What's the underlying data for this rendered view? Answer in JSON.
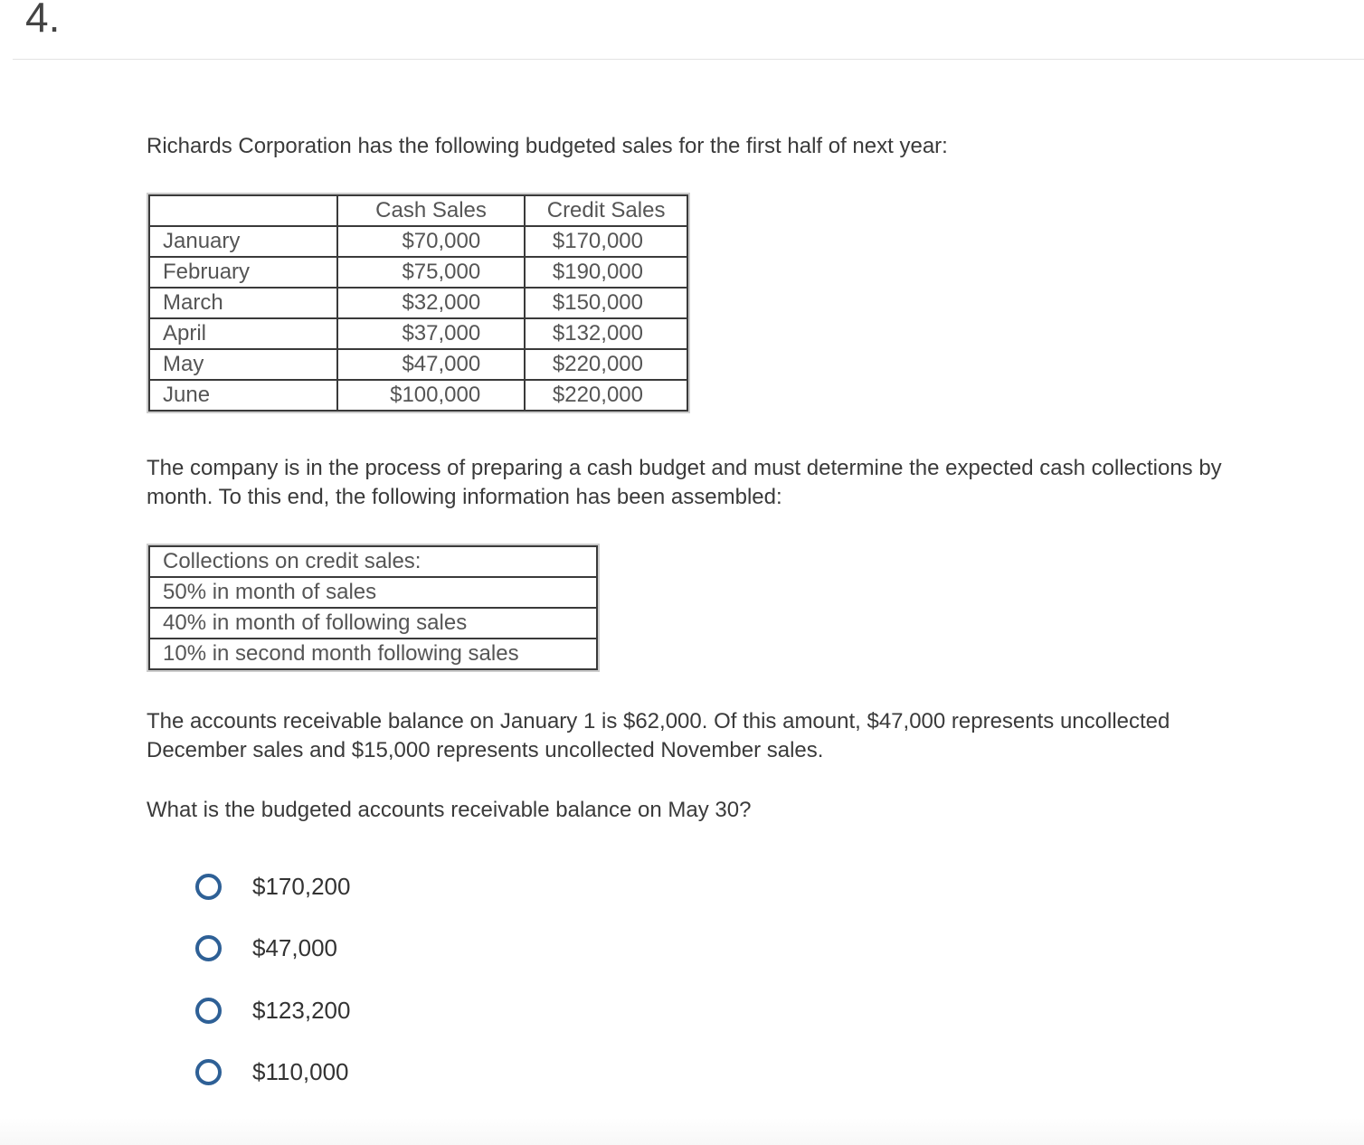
{
  "question_number": "4.",
  "intro": "Richards Corporation has the following budgeted sales for the first half of next year:",
  "sales_table": {
    "headers": [
      "",
      "Cash Sales",
      "Credit Sales"
    ],
    "rows": [
      [
        "January",
        "$70,000",
        "$170,000"
      ],
      [
        "February",
        "$75,000",
        "$190,000"
      ],
      [
        "March",
        "$32,000",
        "$150,000"
      ],
      [
        "April",
        "$37,000",
        "$132,000"
      ],
      [
        "May",
        "$47,000",
        "$220,000"
      ],
      [
        "June",
        "$100,000",
        "$220,000"
      ]
    ]
  },
  "paragraph2": "The company is in the process of preparing a cash budget and must determine the expected cash collections by month. To this end, the following information has been assembled:",
  "collections_table": [
    "Collections on credit sales:",
    "50% in month of sales",
    "40% in month of following sales",
    "10% in second month following sales"
  ],
  "paragraph3": "The accounts receivable balance on January 1 is $62,000. Of this amount, $47,000 represents uncollected December sales and $15,000 represents uncollected November sales.",
  "question": "What is the budgeted accounts receivable balance on May 30?",
  "options": [
    "$170,200",
    "$47,000",
    "$123,200",
    "$110,000"
  ],
  "colors": {
    "radio": "#2e6096"
  }
}
